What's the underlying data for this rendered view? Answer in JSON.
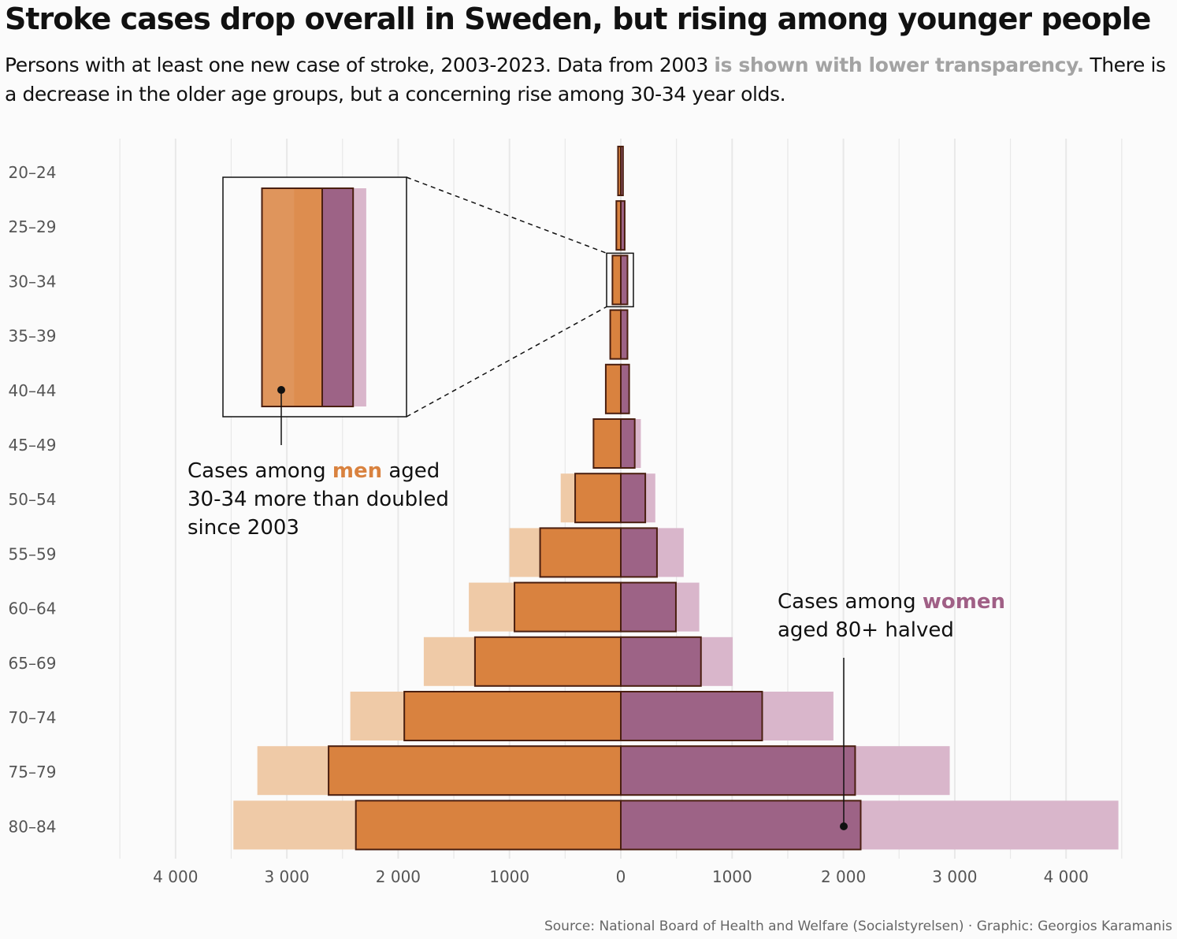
{
  "title": "Stroke cases drop overall in Sweden, but rising among younger people",
  "subtitle": {
    "part1": "Persons with at least one new case of stroke, 2003-2023. Data from 2003 ",
    "muted": "is shown with lower transparency.",
    "part2": " There is a decrease in the older age groups, but a concerning rise among 30-34 year olds."
  },
  "annotations": {
    "men": {
      "pre": "Cases among ",
      "highlight": "men",
      "post1": " aged",
      "line2": "30-34 more than doubled",
      "line3": "since 2003"
    },
    "women": {
      "pre": "Cases among ",
      "highlight": "women",
      "line2": "aged 80+ halved"
    }
  },
  "source": "Source: National Board of Health and Welfare (Socialstyrelsen) · Graphic: Georgios Karamanis",
  "colors": {
    "men": "#d9823f",
    "men_light": "#efcaa7",
    "women": "#9d6386",
    "women_light": "#d9b6cb",
    "outline": "#4a1f10",
    "grid": "#e8e8e8",
    "axis_text": "#555555"
  },
  "chart_data": {
    "type": "bar",
    "orientation": "horizontal-diverging",
    "title": "Stroke cases drop overall in Sweden, but rising among younger people",
    "categories": [
      "20-24",
      "25-29",
      "30-34",
      "35-39",
      "40-44",
      "45-49",
      "50-54",
      "55-59",
      "60-64",
      "65-69",
      "70-74",
      "75-79",
      "80-84"
    ],
    "series": [
      {
        "name": "Men 2023",
        "side": "left",
        "values": [
          25,
          40,
          75,
          95,
          135,
          245,
          410,
          725,
          955,
          1310,
          1945,
          2625,
          2380
        ]
      },
      {
        "name": "Men 2003",
        "side": "left",
        "values": [
          20,
          35,
          35,
          80,
          135,
          245,
          540,
          1000,
          1365,
          1770,
          2430,
          3265,
          3480
        ]
      },
      {
        "name": "Women 2023",
        "side": "right",
        "values": [
          20,
          35,
          60,
          60,
          75,
          125,
          220,
          325,
          495,
          720,
          1270,
          2105,
          2155
        ]
      },
      {
        "name": "Women 2003",
        "side": "right",
        "values": [
          20,
          35,
          45,
          60,
          80,
          180,
          310,
          565,
          705,
          1005,
          1910,
          2955,
          4470
        ]
      }
    ],
    "xticks": [
      4000,
      3000,
      2000,
      1000,
      0,
      1000,
      2000,
      3000,
      4000
    ],
    "xtick_labels": [
      "4 000",
      "3 000",
      "2 000",
      "1000",
      "0",
      "1000",
      "2 000",
      "3 000",
      "4 000"
    ],
    "xlim": [
      -4500,
      4500
    ],
    "xlabel": "",
    "ylabel": ""
  }
}
